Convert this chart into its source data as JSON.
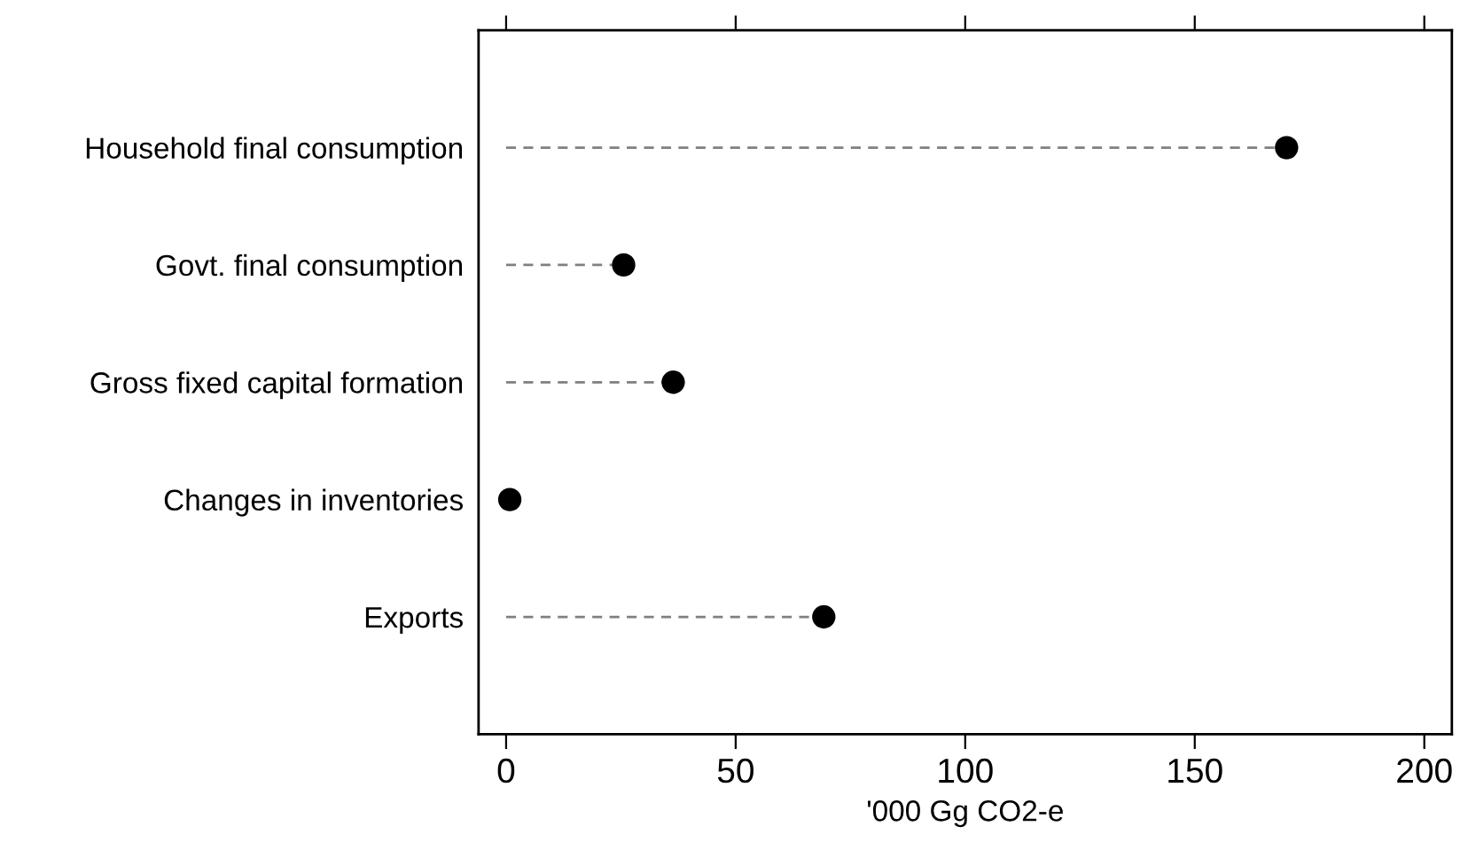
{
  "chart_data": {
    "type": "lollipop",
    "orientation": "horizontal",
    "xlabel": "'000 Gg CO2-e",
    "categories": [
      "Household final consumption",
      "Govt. final consumption",
      "Gross fixed capital formation",
      "Changes in inventories",
      "Exports"
    ],
    "values": [
      170,
      25.6,
      36.4,
      0.8,
      69.2
    ],
    "color": "#000000",
    "marker": "circle",
    "line_style": "dashed",
    "grid": false,
    "legend": false,
    "xlim": [
      -6,
      206
    ],
    "xticks": [
      0,
      50,
      100,
      150,
      200
    ]
  }
}
